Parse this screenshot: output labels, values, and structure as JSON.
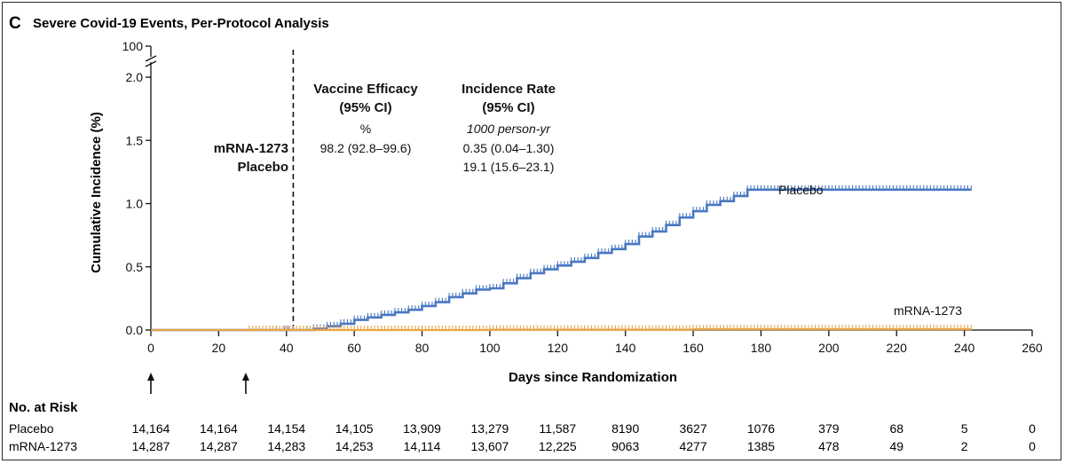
{
  "panel": {
    "letter": "C",
    "title": "Severe Covid-19 Events, Per-Protocol Analysis"
  },
  "colors": {
    "placebo": "#4a78c2",
    "mrna": "#e8a445",
    "axis": "#111111",
    "dashed": "#111111"
  },
  "chart_data": {
    "type": "line",
    "title": "Severe Covid-19 Events, Per-Protocol Analysis",
    "xlabel": "Days since Randomization",
    "ylabel": "Cumulative Incidence (%)",
    "xlim": [
      0,
      260
    ],
    "ylim": [
      0,
      2.0
    ],
    "y_break_top": "100",
    "x_ticks": [
      "0",
      "20",
      "40",
      "60",
      "80",
      "100",
      "120",
      "140",
      "160",
      "180",
      "200",
      "220",
      "240",
      "260"
    ],
    "y_ticks": [
      "0.0",
      "0.5",
      "1.0",
      "1.5",
      "2.0"
    ],
    "dashed_line_x": 42,
    "dose_arrows_x": [
      0,
      28
    ],
    "grid": false,
    "series": [
      {
        "name": "Placebo",
        "key": "placebo",
        "x": [
          0,
          48,
          52,
          56,
          60,
          64,
          68,
          72,
          76,
          80,
          84,
          88,
          92,
          96,
          100,
          104,
          108,
          112,
          116,
          120,
          124,
          128,
          132,
          136,
          140,
          144,
          148,
          152,
          156,
          160,
          164,
          168,
          172,
          176,
          180,
          200,
          220,
          242
        ],
        "y": [
          0,
          0.01,
          0.03,
          0.05,
          0.08,
          0.1,
          0.12,
          0.14,
          0.16,
          0.19,
          0.22,
          0.26,
          0.29,
          0.32,
          0.33,
          0.37,
          0.41,
          0.45,
          0.48,
          0.51,
          0.54,
          0.57,
          0.61,
          0.64,
          0.68,
          0.74,
          0.78,
          0.83,
          0.89,
          0.94,
          0.99,
          1.02,
          1.06,
          1.11,
          1.11,
          1.11,
          1.11,
          1.11
        ]
      },
      {
        "name": "mRNA-1273",
        "key": "mrna",
        "x": [
          0,
          100,
          160,
          242
        ],
        "y": [
          0,
          0.003,
          0.006,
          0.006
        ]
      }
    ],
    "annotations": {
      "legend_label_1": "mRNA-1273",
      "legend_label_2": "Placebo",
      "efficacy_title_1": "Vaccine Efficacy",
      "efficacy_title_2": "(95% CI)",
      "efficacy_unit": "%",
      "efficacy_value": "98.2 (92.8–99.6)",
      "incidence_title_1": "Incidence Rate",
      "incidence_title_2": "(95% CI)",
      "incidence_unit": "1000 person-yr",
      "incidence_mrna": "0.35 (0.04–1.30)",
      "incidence_placebo": "19.1 (15.6–23.1)"
    }
  },
  "risk_table": {
    "title": "No. at Risk",
    "rows": [
      {
        "label": "Placebo",
        "values": [
          "14,164",
          "14,164",
          "14,154",
          "14,105",
          "13,909",
          "13,279",
          "11,587",
          "8190",
          "3627",
          "1076",
          "379",
          "68",
          "5",
          "0"
        ]
      },
      {
        "label": "mRNA-1273",
        "values": [
          "14,287",
          "14,287",
          "14,283",
          "14,253",
          "14,114",
          "13,607",
          "12,225",
          "9063",
          "4277",
          "1385",
          "478",
          "49",
          "2",
          "0"
        ]
      }
    ]
  }
}
